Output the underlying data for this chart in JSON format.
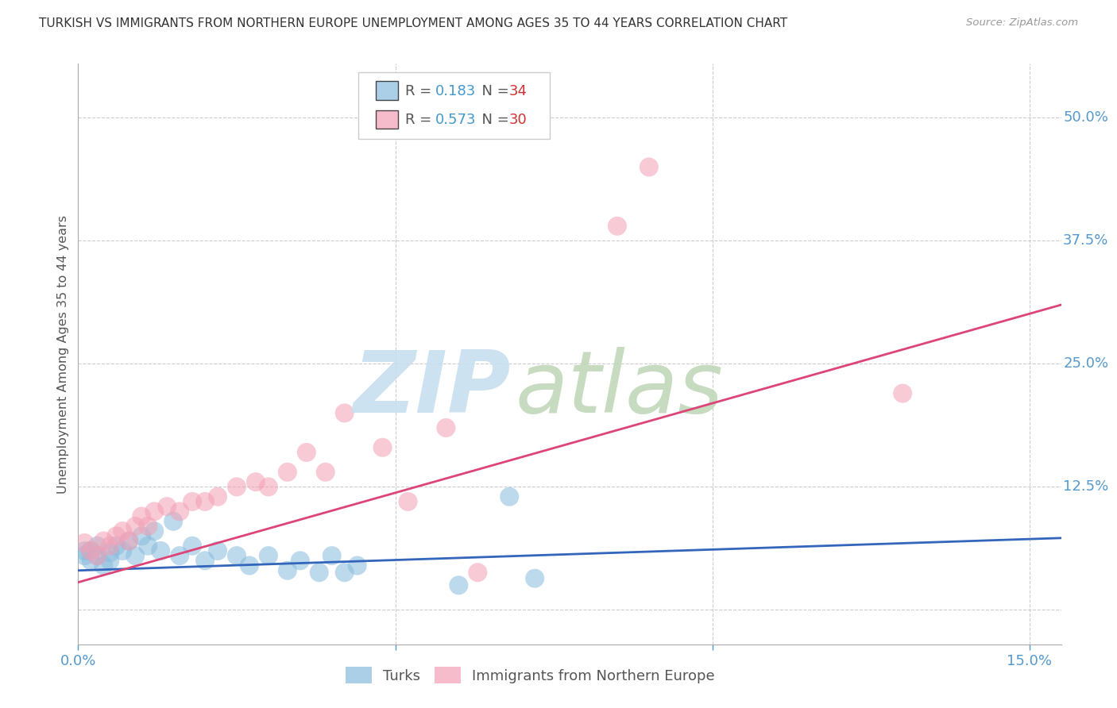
{
  "title": "TURKISH VS IMMIGRANTS FROM NORTHERN EUROPE UNEMPLOYMENT AMONG AGES 35 TO 44 YEARS CORRELATION CHART",
  "source": "Source: ZipAtlas.com",
  "ylabel": "Unemployment Among Ages 35 to 44 years",
  "right_yticks": [
    "50.0%",
    "37.5%",
    "25.0%",
    "12.5%",
    ""
  ],
  "right_ytick_vals": [
    0.5,
    0.375,
    0.25,
    0.125,
    0.0
  ],
  "x_range": [
    0.0,
    0.155
  ],
  "y_range": [
    -0.035,
    0.555
  ],
  "background_color": "#ffffff",
  "plot_bg_color": "#ffffff",
  "grid_color": "#cccccc",
  "title_color": "#333333",
  "tick_color": "#5599cc",
  "blue_series": {
    "name": "Turks",
    "color": "#88bbdd",
    "reg_color": "#3366bb",
    "regression": [
      0.0,
      0.04,
      0.155,
      0.073
    ],
    "points": [
      [
        0.001,
        0.06
      ],
      [
        0.001,
        0.055
      ],
      [
        0.002,
        0.05
      ],
      [
        0.002,
        0.06
      ],
      [
        0.003,
        0.055
      ],
      [
        0.003,
        0.065
      ],
      [
        0.004,
        0.045
      ],
      [
        0.005,
        0.058
      ],
      [
        0.005,
        0.05
      ],
      [
        0.006,
        0.065
      ],
      [
        0.007,
        0.06
      ],
      [
        0.008,
        0.07
      ],
      [
        0.009,
        0.055
      ],
      [
        0.01,
        0.075
      ],
      [
        0.011,
        0.065
      ],
      [
        0.012,
        0.08
      ],
      [
        0.013,
        0.06
      ],
      [
        0.015,
        0.09
      ],
      [
        0.016,
        0.055
      ],
      [
        0.018,
        0.065
      ],
      [
        0.02,
        0.05
      ],
      [
        0.022,
        0.06
      ],
      [
        0.025,
        0.055
      ],
      [
        0.027,
        0.045
      ],
      [
        0.03,
        0.055
      ],
      [
        0.033,
        0.04
      ],
      [
        0.035,
        0.05
      ],
      [
        0.038,
        0.038
      ],
      [
        0.04,
        0.055
      ],
      [
        0.042,
        0.038
      ],
      [
        0.044,
        0.045
      ],
      [
        0.06,
        0.025
      ],
      [
        0.068,
        0.115
      ],
      [
        0.072,
        0.032
      ]
    ]
  },
  "pink_series": {
    "name": "Immigrants from Northern Europe",
    "color": "#f4a0b5",
    "reg_color": "#dd4477",
    "regression": [
      0.0,
      0.028,
      0.155,
      0.31
    ],
    "points": [
      [
        0.001,
        0.068
      ],
      [
        0.002,
        0.06
      ],
      [
        0.003,
        0.055
      ],
      [
        0.004,
        0.07
      ],
      [
        0.005,
        0.065
      ],
      [
        0.006,
        0.075
      ],
      [
        0.007,
        0.08
      ],
      [
        0.008,
        0.07
      ],
      [
        0.009,
        0.085
      ],
      [
        0.01,
        0.095
      ],
      [
        0.011,
        0.085
      ],
      [
        0.012,
        0.1
      ],
      [
        0.014,
        0.105
      ],
      [
        0.016,
        0.1
      ],
      [
        0.018,
        0.11
      ],
      [
        0.02,
        0.11
      ],
      [
        0.022,
        0.115
      ],
      [
        0.025,
        0.125
      ],
      [
        0.028,
        0.13
      ],
      [
        0.03,
        0.125
      ],
      [
        0.033,
        0.14
      ],
      [
        0.036,
        0.16
      ],
      [
        0.039,
        0.14
      ],
      [
        0.042,
        0.2
      ],
      [
        0.048,
        0.165
      ],
      [
        0.052,
        0.11
      ],
      [
        0.058,
        0.185
      ],
      [
        0.063,
        0.038
      ],
      [
        0.085,
        0.39
      ],
      [
        0.09,
        0.45
      ],
      [
        0.13,
        0.22
      ]
    ]
  },
  "watermark_zip_color": "#c8dff0",
  "watermark_atlas_color": "#c0d8b8"
}
